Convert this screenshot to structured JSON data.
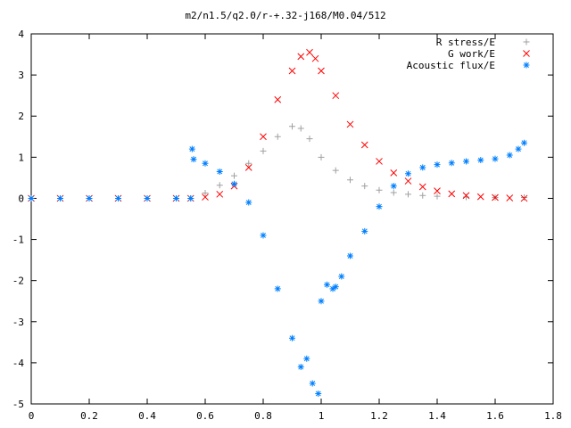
{
  "chart_data": {
    "type": "scatter",
    "title": "m2/n1.5/q2.0/r-+.32-j168/M0.04/512",
    "xlabel": "",
    "ylabel": "",
    "xlim": [
      0,
      1.8
    ],
    "ylim": [
      -5,
      4
    ],
    "xticks": [
      "0",
      "0.2",
      "0.4",
      "0.6",
      "0.8",
      "1",
      "1.2",
      "1.4",
      "1.6",
      "1.8"
    ],
    "yticks": [
      "-5",
      "-4",
      "-3",
      "-2",
      "-1",
      "0",
      "1",
      "2",
      "3",
      "4"
    ],
    "grid": false,
    "legend_position": "top-right",
    "series": [
      {
        "name": "R stress/E",
        "marker": "+",
        "color": "#a0a0a0",
        "x": [
          0,
          0.1,
          0.2,
          0.3,
          0.4,
          0.5,
          0.55,
          0.6,
          0.65,
          0.7,
          0.75,
          0.8,
          0.85,
          0.9,
          0.93,
          0.96,
          1.0,
          1.05,
          1.1,
          1.15,
          1.2,
          1.25,
          1.3,
          1.35,
          1.4,
          1.5,
          1.6,
          1.7
        ],
        "y": [
          0,
          0,
          0,
          0,
          0,
          0,
          0,
          0.13,
          0.32,
          0.55,
          0.85,
          1.15,
          1.5,
          1.75,
          1.7,
          1.45,
          1.0,
          0.68,
          0.45,
          0.3,
          0.2,
          0.14,
          0.1,
          0.07,
          0.05,
          0.03,
          0.02,
          0.02
        ]
      },
      {
        "name": "G work/E",
        "marker": "x",
        "color": "#ff0000",
        "x": [
          0,
          0.1,
          0.2,
          0.3,
          0.4,
          0.5,
          0.55,
          0.6,
          0.65,
          0.7,
          0.75,
          0.8,
          0.85,
          0.9,
          0.93,
          0.96,
          0.98,
          1.0,
          1.05,
          1.1,
          1.15,
          1.2,
          1.25,
          1.3,
          1.35,
          1.4,
          1.45,
          1.5,
          1.55,
          1.6,
          1.65,
          1.7
        ],
        "y": [
          0,
          0,
          0,
          0,
          0,
          0,
          0,
          0.03,
          0.1,
          0.3,
          0.75,
          1.5,
          2.4,
          3.1,
          3.45,
          3.55,
          3.4,
          3.1,
          2.5,
          1.8,
          1.3,
          0.9,
          0.62,
          0.42,
          0.28,
          0.18,
          0.11,
          0.07,
          0.04,
          0.02,
          0.01,
          0
        ]
      },
      {
        "name": "Acoustic flux/E",
        "marker": "*",
        "color": "#0080ff",
        "x": [
          0,
          0.1,
          0.2,
          0.3,
          0.4,
          0.5,
          0.55,
          0.555,
          0.56,
          0.6,
          0.65,
          0.7,
          0.75,
          0.8,
          0.85,
          0.9,
          0.93,
          0.95,
          0.97,
          0.99,
          1.0,
          1.02,
          1.04,
          1.05,
          1.07,
          1.1,
          1.15,
          1.2,
          1.25,
          1.3,
          1.35,
          1.4,
          1.45,
          1.5,
          1.55,
          1.6,
          1.65,
          1.68,
          1.7
        ],
        "y": [
          0,
          0,
          0,
          0,
          0,
          0,
          0,
          1.2,
          0.95,
          0.85,
          0.65,
          0.35,
          -0.1,
          -0.9,
          -2.2,
          -3.4,
          -4.1,
          -3.9,
          -4.5,
          -4.75,
          -2.5,
          -2.1,
          -2.2,
          -2.15,
          -1.9,
          -1.4,
          -0.8,
          -0.2,
          0.3,
          0.6,
          0.75,
          0.82,
          0.86,
          0.9,
          0.93,
          0.96,
          1.05,
          1.2,
          1.35
        ]
      }
    ]
  }
}
